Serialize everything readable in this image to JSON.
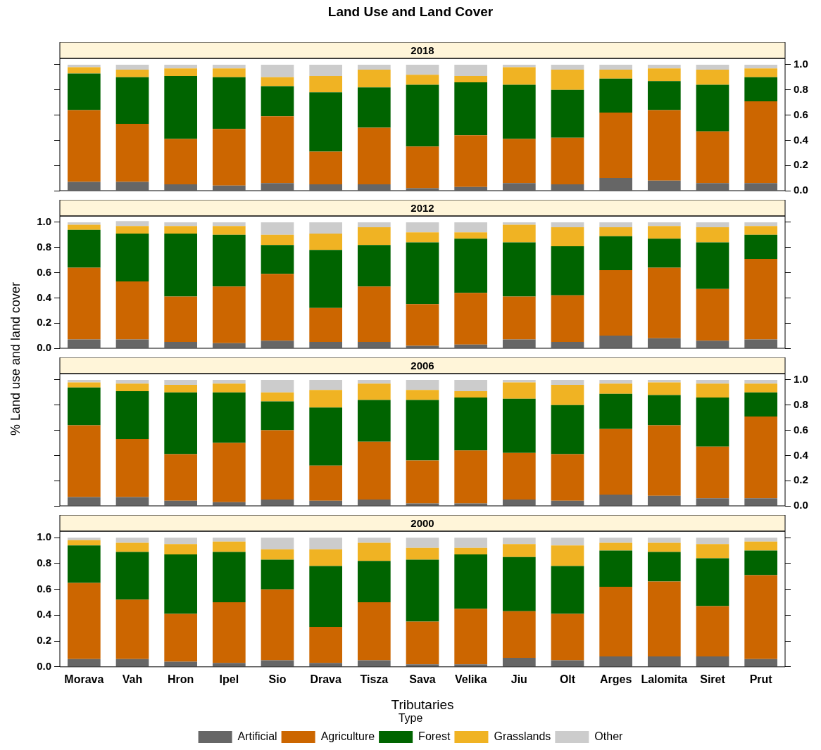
{
  "chart_data": [
    {
      "type": "bar",
      "title": "Land Use and Land Cover",
      "subtitle": "2018",
      "stacked": true,
      "legend": false,
      "grid": false,
      "categories": [
        null,
        null,
        null,
        null,
        null,
        null,
        null,
        null,
        null,
        null,
        null,
        null,
        null,
        null,
        null
      ],
      "ylim": [
        0,
        1.05
      ],
      "yticks": [
        {
          "value": 0,
          "label": "0.0"
        },
        {
          "value": 0.2,
          "label": "0.2"
        },
        {
          "value": 0.4,
          "label": "0.4"
        },
        {
          "value": 0.6,
          "label": "0.6"
        },
        {
          "value": 0.8,
          "label": "0.8"
        },
        {
          "value": 1,
          "label": "1.0"
        }
      ],
      "series": [
        {
          "color": "#666666",
          "values": [
            0.07,
            0.07,
            0.05,
            0.04,
            0.06,
            0.05,
            0.05,
            0.02,
            0.03,
            0.06,
            0.05,
            0.1,
            0.08,
            0.06,
            0.06
          ]
        },
        {
          "color": "#cc6600",
          "values": [
            0.57,
            0.46,
            0.36,
            0.45,
            0.53,
            0.26,
            0.45,
            0.33,
            0.41,
            0.35,
            0.37,
            0.52,
            0.56,
            0.41,
            0.65
          ]
        },
        {
          "color": "#006400",
          "values": [
            0.29,
            0.37,
            0.5,
            0.41,
            0.24,
            0.47,
            0.32,
            0.49,
            0.42,
            0.43,
            0.38,
            0.27,
            0.23,
            0.37,
            0.19
          ]
        },
        {
          "color": "#f0b323",
          "values": [
            0.05,
            0.06,
            0.06,
            0.07,
            0.07,
            0.13,
            0.14,
            0.08,
            0.05,
            0.14,
            0.16,
            0.07,
            0.1,
            0.12,
            0.07
          ]
        },
        {
          "color": "#cccccc",
          "values": [
            0.02,
            0.04,
            0.03,
            0.03,
            0.1,
            0.09,
            0.04,
            0.08,
            0.09,
            0.02,
            0.04,
            0.04,
            0.03,
            0.04,
            0.03
          ]
        }
      ]
    },
    {
      "type": "bar",
      "subtitle": "2012",
      "ylabel": "% Land use and land cover",
      "stacked": true,
      "legend": false,
      "grid": false,
      "categories": [
        null,
        null,
        null,
        null,
        null,
        null,
        null,
        null,
        null,
        null,
        null,
        null,
        null,
        null,
        null
      ],
      "ylim": [
        0,
        1.05
      ],
      "yticks": [
        {
          "value": 0,
          "label": "0.0"
        },
        {
          "value": 0.2,
          "label": "0.2"
        },
        {
          "value": 0.4,
          "label": "0.4"
        },
        {
          "value": 0.6,
          "label": "0.6"
        },
        {
          "value": 0.8,
          "label": "0.8"
        },
        {
          "value": 1,
          "label": "1.0"
        }
      ],
      "series": [
        {
          "color": "#666666",
          "values": [
            0.07,
            0.07,
            0.05,
            0.04,
            0.06,
            0.05,
            0.05,
            0.02,
            0.03,
            0.07,
            0.05,
            0.1,
            0.08,
            0.06,
            0.07
          ]
        },
        {
          "color": "#cc6600",
          "values": [
            0.57,
            0.46,
            0.36,
            0.45,
            0.53,
            0.27,
            0.44,
            0.33,
            0.41,
            0.34,
            0.37,
            0.52,
            0.56,
            0.41,
            0.64
          ]
        },
        {
          "color": "#006400",
          "values": [
            0.3,
            0.38,
            0.5,
            0.41,
            0.23,
            0.46,
            0.33,
            0.49,
            0.43,
            0.43,
            0.39,
            0.27,
            0.23,
            0.37,
            0.19
          ]
        },
        {
          "color": "#f0b323",
          "values": [
            0.04,
            0.06,
            0.06,
            0.07,
            0.08,
            0.13,
            0.14,
            0.08,
            0.05,
            0.14,
            0.15,
            0.07,
            0.1,
            0.12,
            0.07
          ]
        },
        {
          "color": "#cccccc",
          "values": [
            0.02,
            0.04,
            0.03,
            0.03,
            0.1,
            0.09,
            0.04,
            0.08,
            0.08,
            0.02,
            0.04,
            0.04,
            0.03,
            0.04,
            0.03
          ]
        }
      ]
    },
    {
      "type": "bar",
      "subtitle": "2006",
      "stacked": true,
      "legend": false,
      "grid": false,
      "categories": [
        null,
        null,
        null,
        null,
        null,
        null,
        null,
        null,
        null,
        null,
        null,
        null,
        null,
        null,
        null
      ],
      "ylim": [
        0,
        1.05
      ],
      "yticks": [
        {
          "value": 0,
          "label": "0.0"
        },
        {
          "value": 0.2,
          "label": "0.2"
        },
        {
          "value": 0.4,
          "label": "0.4"
        },
        {
          "value": 0.6,
          "label": "0.6"
        },
        {
          "value": 0.8,
          "label": "0.8"
        },
        {
          "value": 1,
          "label": "1.0"
        }
      ],
      "series": [
        {
          "color": "#666666",
          "values": [
            0.07,
            0.07,
            0.04,
            0.03,
            0.05,
            0.04,
            0.05,
            0.02,
            0.02,
            0.05,
            0.04,
            0.09,
            0.08,
            0.06,
            0.06
          ]
        },
        {
          "color": "#cc6600",
          "values": [
            0.57,
            0.46,
            0.37,
            0.47,
            0.55,
            0.28,
            0.46,
            0.34,
            0.42,
            0.37,
            0.37,
            0.52,
            0.56,
            0.41,
            0.65
          ]
        },
        {
          "color": "#006400",
          "values": [
            0.3,
            0.38,
            0.49,
            0.4,
            0.23,
            0.46,
            0.33,
            0.48,
            0.42,
            0.43,
            0.39,
            0.28,
            0.24,
            0.39,
            0.19
          ]
        },
        {
          "color": "#f0b323",
          "values": [
            0.04,
            0.06,
            0.06,
            0.07,
            0.07,
            0.14,
            0.13,
            0.08,
            0.05,
            0.13,
            0.16,
            0.08,
            0.1,
            0.11,
            0.07
          ]
        },
        {
          "color": "#cccccc",
          "values": [
            0.02,
            0.03,
            0.04,
            0.03,
            0.1,
            0.08,
            0.03,
            0.08,
            0.09,
            0.02,
            0.04,
            0.03,
            0.02,
            0.03,
            0.03
          ]
        }
      ]
    },
    {
      "type": "bar",
      "subtitle": "2000",
      "xlabel": "Tributaries",
      "legend_title": "Type",
      "stacked": true,
      "legend": "bottom",
      "grid": false,
      "categories": [
        "Morava",
        "Vah",
        "Hron",
        "Ipel",
        "Sio",
        "Drava",
        "Tisza",
        "Sava",
        "Velika",
        "Jiu",
        "Olt",
        "Arges",
        "Lalomita",
        "Siret",
        "Prut"
      ],
      "ylim": [
        0,
        1.05
      ],
      "yticks": [
        {
          "value": 0,
          "label": "0.0"
        },
        {
          "value": 0.2,
          "label": "0.2"
        },
        {
          "value": 0.4,
          "label": "0.4"
        },
        {
          "value": 0.6,
          "label": "0.6"
        },
        {
          "value": 0.8,
          "label": "0.8"
        },
        {
          "value": 1,
          "label": "1.0"
        }
      ],
      "series": [
        {
          "name": "Artificial",
          "color": "#666666",
          "values": [
            0.06,
            0.06,
            0.04,
            0.03,
            0.05,
            0.03,
            0.05,
            0.02,
            0.02,
            0.07,
            0.05,
            0.08,
            0.08,
            0.08,
            0.06
          ]
        },
        {
          "name": "Agriculture",
          "color": "#cc6600",
          "values": [
            0.59,
            0.46,
            0.37,
            0.47,
            0.55,
            0.28,
            0.45,
            0.33,
            0.43,
            0.36,
            0.36,
            0.54,
            0.58,
            0.39,
            0.65
          ]
        },
        {
          "name": "Forest",
          "color": "#006400",
          "values": [
            0.29,
            0.37,
            0.46,
            0.39,
            0.23,
            0.47,
            0.32,
            0.48,
            0.42,
            0.42,
            0.37,
            0.28,
            0.23,
            0.37,
            0.19
          ]
        },
        {
          "name": "Grasslands",
          "color": "#f0b323",
          "values": [
            0.04,
            0.07,
            0.08,
            0.08,
            0.08,
            0.13,
            0.14,
            0.09,
            0.05,
            0.1,
            0.16,
            0.06,
            0.07,
            0.11,
            0.07
          ]
        },
        {
          "name": "Other",
          "color": "#cccccc",
          "values": [
            0.02,
            0.04,
            0.05,
            0.03,
            0.09,
            0.09,
            0.04,
            0.08,
            0.08,
            0.05,
            0.06,
            0.04,
            0.04,
            0.05,
            0.03
          ]
        }
      ]
    }
  ]
}
